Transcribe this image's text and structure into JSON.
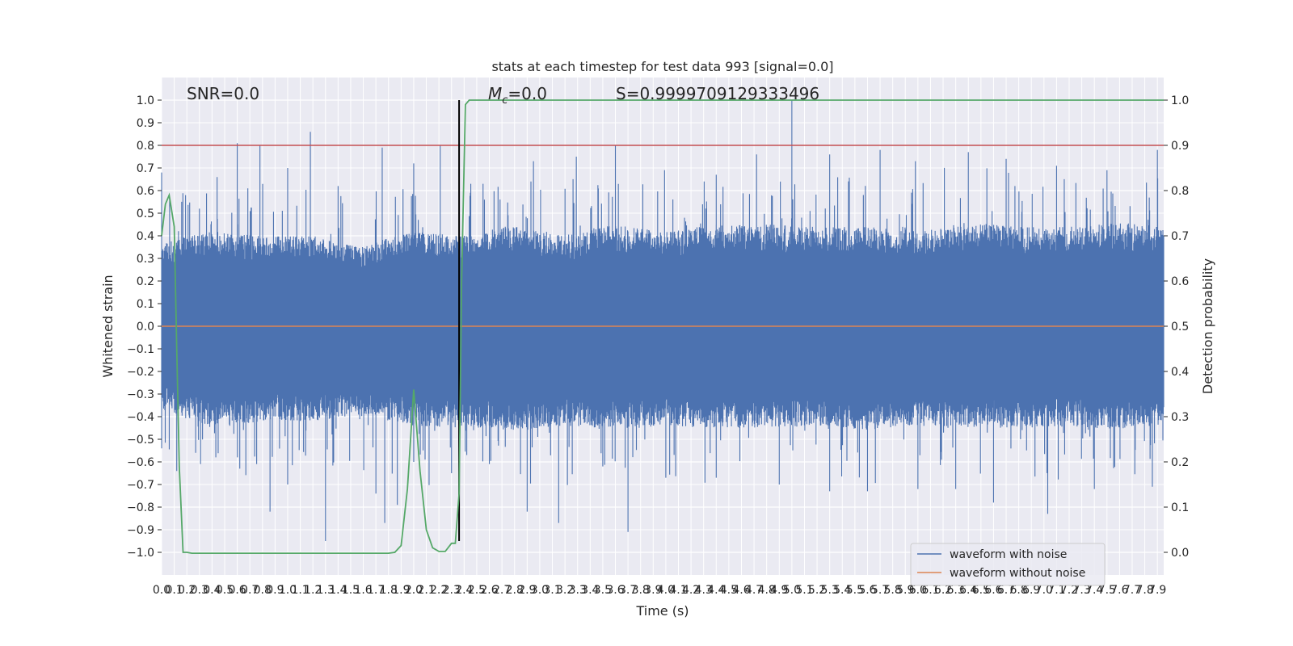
{
  "chart_data": {
    "type": "line",
    "title": "stats at each timestep for test data 993 [signal=0.0]",
    "xlabel": "Time (s)",
    "ylabel": "Whitened strain",
    "y2label": "Detection probability",
    "xlim": [
      0.0,
      7.95
    ],
    "ylim": [
      -1.1,
      1.1
    ],
    "y2lim": [
      -0.05,
      1.05
    ],
    "xticks": [
      0.0,
      0.1,
      0.2,
      0.3,
      0.4,
      0.5,
      0.6,
      0.7,
      0.8,
      0.9,
      1.0,
      1.1,
      1.2,
      1.3,
      1.4,
      1.5,
      1.6,
      1.7,
      1.8,
      1.9,
      2.0,
      2.1,
      2.2,
      2.3,
      2.4,
      2.5,
      2.6,
      2.7,
      2.8,
      2.9,
      3.0,
      3.1,
      3.2,
      3.3,
      3.4,
      3.5,
      3.6,
      3.7,
      3.8,
      3.9,
      4.0,
      4.1,
      4.2,
      4.3,
      4.4,
      4.5,
      4.6,
      4.7,
      4.8,
      4.9,
      5.0,
      5.1,
      5.2,
      5.3,
      5.4,
      5.5,
      5.6,
      5.7,
      5.8,
      5.9,
      6.0,
      6.1,
      6.2,
      6.3,
      6.4,
      6.5,
      6.6,
      6.7,
      6.8,
      6.9,
      7.0,
      7.1,
      7.2,
      7.3,
      7.4,
      7.5,
      7.6,
      7.7,
      7.8,
      7.9
    ],
    "yticks": [
      -1.0,
      -0.9,
      -0.8,
      -0.7,
      -0.6,
      -0.5,
      -0.4,
      -0.3,
      -0.2,
      -0.1,
      0.0,
      0.1,
      0.2,
      0.3,
      0.4,
      0.5,
      0.6,
      0.7,
      0.8,
      0.9,
      1.0
    ],
    "y2ticks": [
      0.0,
      0.1,
      0.2,
      0.3,
      0.4,
      0.5,
      0.6,
      0.7,
      0.8,
      0.9,
      1.0
    ],
    "grid": true,
    "legend_position": "lower-right",
    "annotations": {
      "snr": "SNR=0.0",
      "mc_symbol": "M",
      "mc_sub": "c",
      "mc_value": "=0.0",
      "s": "S=0.9999709129333496"
    },
    "threshold": {
      "axis": "right",
      "value": 0.9,
      "color": "#c44e52"
    },
    "marker_time": 2.36,
    "noise_envelope": {
      "upper": [
        [
          0.0,
          0.37
        ],
        [
          0.4,
          0.42
        ],
        [
          0.8,
          0.4
        ],
        [
          1.2,
          0.4
        ],
        [
          1.6,
          0.36
        ],
        [
          2.0,
          0.42
        ],
        [
          2.4,
          0.4
        ],
        [
          2.8,
          0.45
        ],
        [
          3.2,
          0.4
        ],
        [
          3.6,
          0.45
        ],
        [
          4.0,
          0.42
        ],
        [
          4.4,
          0.45
        ],
        [
          4.8,
          0.45
        ],
        [
          5.2,
          0.44
        ],
        [
          5.6,
          0.44
        ],
        [
          6.0,
          0.42
        ],
        [
          6.4,
          0.46
        ],
        [
          6.8,
          0.44
        ],
        [
          7.2,
          0.44
        ],
        [
          7.6,
          0.46
        ],
        [
          7.95,
          0.44
        ]
      ],
      "lower": [
        [
          0.0,
          -0.37
        ],
        [
          0.4,
          -0.45
        ],
        [
          0.8,
          -0.42
        ],
        [
          1.2,
          -0.42
        ],
        [
          1.6,
          -0.4
        ],
        [
          2.0,
          -0.44
        ],
        [
          2.4,
          -0.45
        ],
        [
          2.8,
          -0.46
        ],
        [
          3.2,
          -0.44
        ],
        [
          3.6,
          -0.46
        ],
        [
          4.0,
          -0.44
        ],
        [
          4.4,
          -0.45
        ],
        [
          4.8,
          -0.45
        ],
        [
          5.2,
          -0.44
        ],
        [
          5.6,
          -0.46
        ],
        [
          6.0,
          -0.44
        ],
        [
          6.4,
          -0.45
        ],
        [
          6.8,
          -0.45
        ],
        [
          7.2,
          -0.44
        ],
        [
          7.6,
          -0.46
        ],
        [
          7.95,
          -0.44
        ]
      ],
      "peaks": [
        [
          0.0,
          0.68
        ],
        [
          0.19,
          0.58
        ],
        [
          0.3,
          0.52
        ],
        [
          0.44,
          0.66
        ],
        [
          0.6,
          0.81
        ],
        [
          0.78,
          0.8
        ],
        [
          1.0,
          0.7
        ],
        [
          1.18,
          0.86
        ],
        [
          1.4,
          0.62
        ],
        [
          1.75,
          0.79
        ],
        [
          2.0,
          0.72
        ],
        [
          2.21,
          0.8
        ],
        [
          2.36,
          0.58
        ],
        [
          2.55,
          0.63
        ],
        [
          2.95,
          0.73
        ],
        [
          3.29,
          0.75
        ],
        [
          3.6,
          0.8
        ],
        [
          3.99,
          0.69
        ],
        [
          4.4,
          0.67
        ],
        [
          4.72,
          0.76
        ],
        [
          5.0,
          1.0
        ],
        [
          5.3,
          0.76
        ],
        [
          5.7,
          0.78
        ],
        [
          5.98,
          0.73
        ],
        [
          6.4,
          0.77
        ],
        [
          6.7,
          0.74
        ],
        [
          7.1,
          0.71
        ],
        [
          7.5,
          0.69
        ],
        [
          7.9,
          0.78
        ]
      ],
      "troughs": [
        [
          0.0,
          -0.54
        ],
        [
          0.12,
          -0.64
        ],
        [
          0.27,
          -0.56
        ],
        [
          0.43,
          -0.58
        ],
        [
          0.62,
          -0.63
        ],
        [
          0.86,
          -0.82
        ],
        [
          1.0,
          -0.7
        ],
        [
          1.3,
          -0.95
        ],
        [
          1.7,
          -0.74
        ],
        [
          1.77,
          -0.87
        ],
        [
          1.87,
          -0.79
        ],
        [
          2.0,
          -0.6
        ],
        [
          2.3,
          -0.65
        ],
        [
          2.6,
          -0.61
        ],
        [
          2.9,
          -0.82
        ],
        [
          3.15,
          -0.87
        ],
        [
          3.5,
          -0.62
        ],
        [
          3.7,
          -0.91
        ],
        [
          4.0,
          -0.67
        ],
        [
          4.4,
          -0.67
        ],
        [
          4.9,
          -0.7
        ],
        [
          5.3,
          -0.73
        ],
        [
          5.6,
          -0.73
        ],
        [
          6.0,
          -0.72
        ],
        [
          6.3,
          -0.72
        ],
        [
          6.6,
          -0.78
        ],
        [
          7.03,
          -0.83
        ],
        [
          7.4,
          -0.72
        ],
        [
          7.86,
          -0.71
        ]
      ]
    },
    "series": [
      {
        "name": "waveform with noise",
        "axis": "left",
        "color": "#4c72b0"
      },
      {
        "name": "waveform without noise",
        "axis": "left",
        "color": "#dd8452",
        "x": [
          0.0,
          7.95
        ],
        "y": [
          0.0,
          0.0
        ]
      },
      {
        "axis": "right",
        "color": "#55a868",
        "x": [
          0.0,
          0.03,
          0.06,
          0.1,
          0.12,
          0.14,
          0.17,
          0.2,
          0.24,
          0.3,
          0.5,
          0.8,
          1.2,
          1.6,
          1.8,
          1.85,
          1.9,
          1.95,
          2.0,
          2.05,
          2.1,
          2.15,
          2.2,
          2.25,
          2.3,
          2.33,
          2.36,
          2.38,
          2.41,
          2.44,
          2.47,
          2.52,
          2.58,
          3.0,
          4.0,
          5.0,
          6.0,
          7.0,
          7.95
        ],
        "y": [
          0.7,
          0.77,
          0.79,
          0.72,
          0.45,
          0.19,
          0.0,
          0.0,
          -0.002,
          -0.002,
          -0.002,
          -0.002,
          -0.002,
          -0.002,
          -0.002,
          0.0,
          0.015,
          0.14,
          0.36,
          0.18,
          0.05,
          0.01,
          0.002,
          0.002,
          0.02,
          0.02,
          0.13,
          0.6,
          0.99,
          1.0,
          1.0,
          1.0,
          1.0,
          1.0,
          1.0,
          1.0,
          1.0,
          1.0,
          1.0
        ]
      }
    ]
  }
}
